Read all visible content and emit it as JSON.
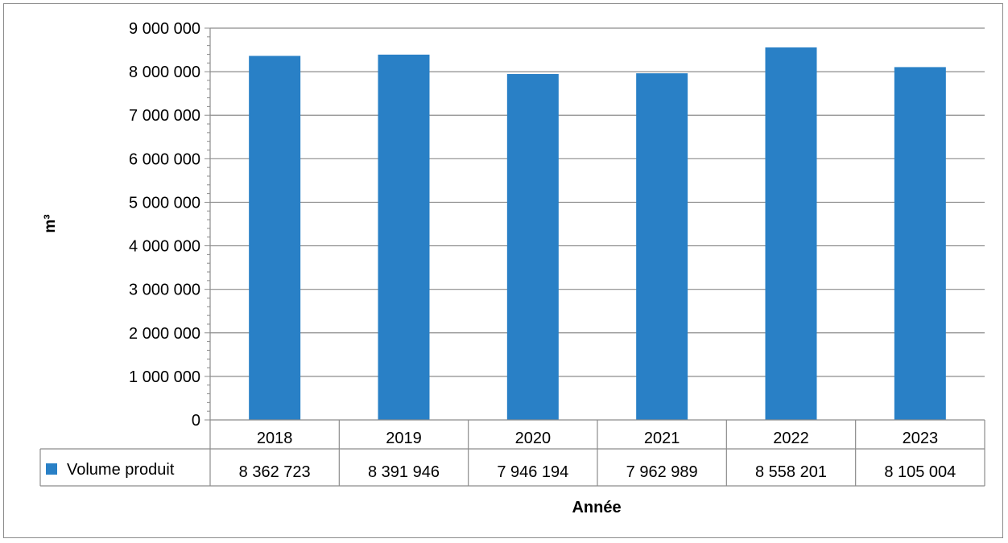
{
  "chart_data": {
    "type": "bar",
    "title": "",
    "xlabel": "Année",
    "ylabel": "m³",
    "categories": [
      "2018",
      "2019",
      "2020",
      "2021",
      "2022",
      "2023"
    ],
    "series": [
      {
        "name": "Volume produit",
        "color": "#2980c6",
        "values": [
          8362723,
          8391946,
          7946194,
          7962989,
          8558201,
          8105004
        ],
        "value_labels": [
          "8 362 723",
          "8 391 946",
          "7 946 194",
          "7 962 989",
          "8 558 201",
          "8 105 004"
        ]
      }
    ],
    "ylim": [
      0,
      9000000
    ],
    "y_ticks": [
      0,
      1000000,
      2000000,
      3000000,
      4000000,
      5000000,
      6000000,
      7000000,
      8000000,
      9000000
    ],
    "y_tick_labels": [
      "0",
      "1 000 000",
      "2 000 000",
      "3 000 000",
      "4 000 000",
      "5 000 000",
      "6 000 000",
      "7 000 000",
      "8 000 000",
      "9 000 000"
    ],
    "grid": true,
    "legend": "data-table",
    "data_table": true
  }
}
